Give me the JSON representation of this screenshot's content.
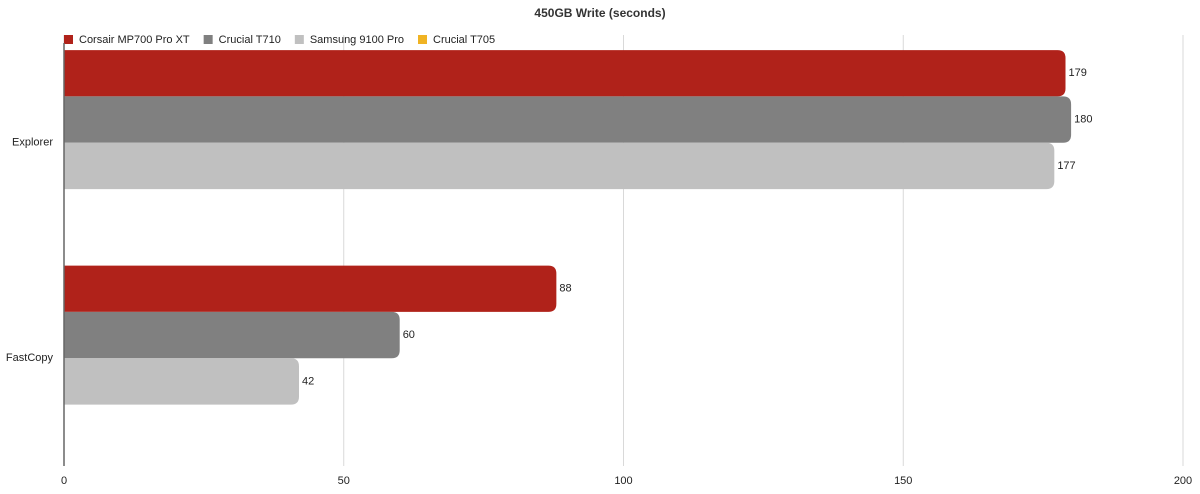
{
  "chart_data": {
    "type": "hbar",
    "title": "450GB Write (seconds)",
    "categories": [
      "Explorer",
      "FastCopy"
    ],
    "series": [
      {
        "name": "Corsair MP700 Pro XT",
        "color": "#b0221a",
        "values": [
          179,
          88
        ]
      },
      {
        "name": "Crucial T710",
        "color": "#808080",
        "values": [
          180,
          60
        ]
      },
      {
        "name": "Samsung 9100 Pro",
        "color": "#c0c0c0",
        "values": [
          177,
          42
        ]
      },
      {
        "name": "Crucial T705",
        "color": "#f0b323",
        "values": [
          null,
          null
        ]
      }
    ],
    "xlim": [
      0,
      200
    ],
    "xticks": [
      0,
      50,
      100,
      150,
      200
    ],
    "grid": true,
    "legend": "top-left"
  }
}
